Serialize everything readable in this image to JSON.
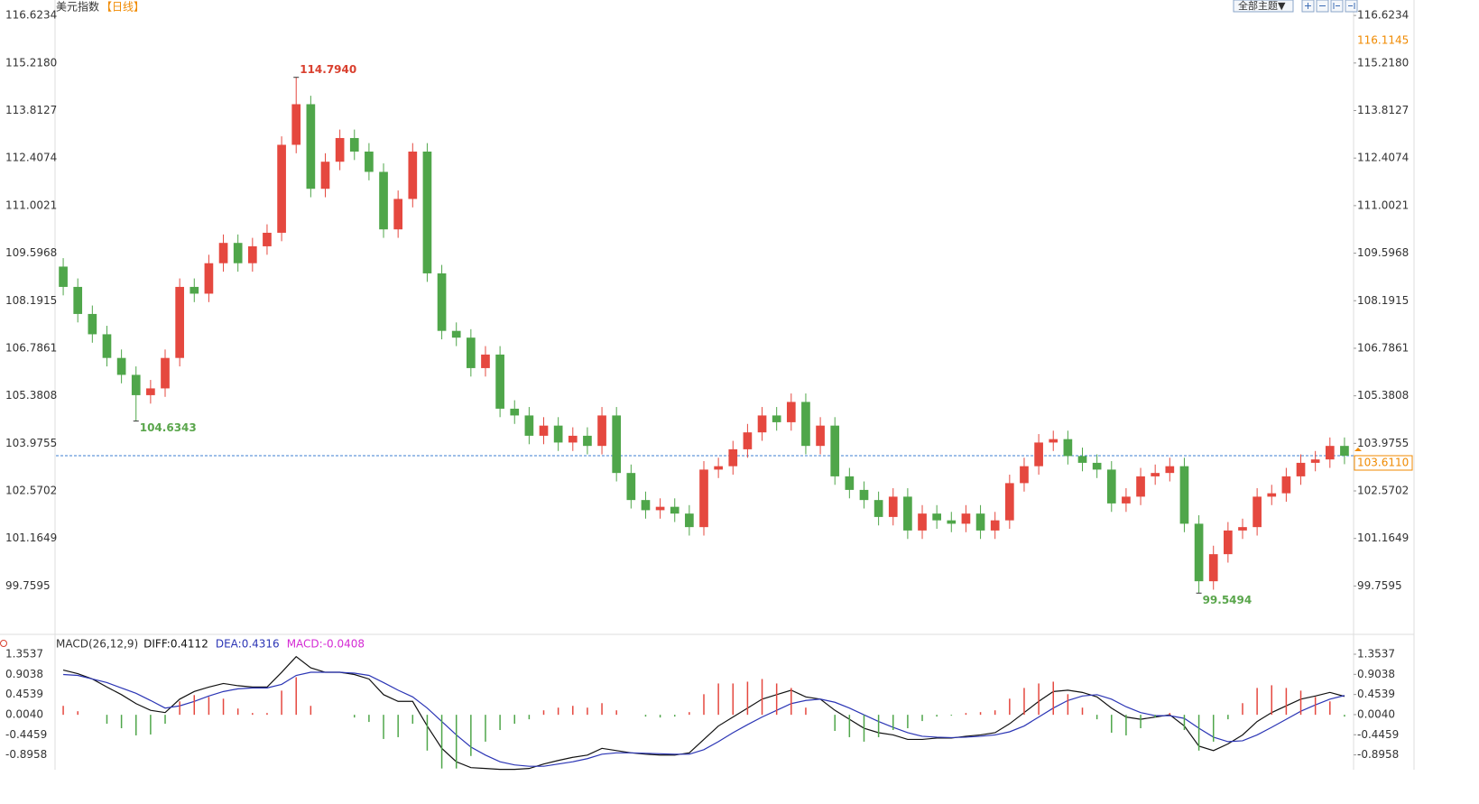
{
  "header": {
    "title": "美元指数",
    "period": "【日线】",
    "theme_button": "全部主题▼"
  },
  "chart_data": [
    {
      "type": "candlestick",
      "up_color": "#e5483f",
      "down_color": "#4fa64a",
      "open": [
        109.2,
        108.6,
        107.8,
        107.2,
        106.5,
        106.0,
        105.4,
        105.6,
        106.5,
        108.6,
        108.4,
        109.3,
        109.9,
        109.3,
        109.8,
        110.2,
        112.8,
        114.0,
        111.5,
        112.3,
        113.0,
        112.6,
        112.0,
        110.3,
        111.2,
        112.6,
        109.0,
        107.3,
        107.1,
        106.2,
        106.6,
        105.0,
        104.8,
        104.2,
        104.5,
        104.0,
        104.2,
        103.9,
        104.8,
        103.1,
        102.3,
        102.0,
        102.1,
        101.9,
        101.5,
        103.2,
        103.3,
        103.8,
        104.3,
        104.8,
        104.6,
        105.2,
        103.9,
        104.5,
        103.0,
        102.6,
        102.3,
        101.8,
        102.4,
        101.4,
        101.9,
        101.7,
        101.6,
        101.9,
        101.4,
        101.7,
        102.8,
        103.3,
        104.0,
        104.1,
        103.6,
        103.4,
        103.2,
        102.2,
        102.4,
        103.0,
        103.1,
        103.3,
        101.6,
        99.9,
        100.7,
        101.4,
        101.5,
        102.4,
        102.5,
        103.0,
        103.4,
        103.5,
        103.9
      ],
      "high": [
        109.45,
        108.85,
        108.05,
        107.45,
        106.75,
        106.25,
        105.85,
        106.75,
        108.85,
        108.85,
        109.55,
        110.15,
        110.15,
        110.05,
        110.45,
        113.05,
        114.794,
        114.25,
        112.55,
        113.25,
        113.25,
        112.85,
        112.25,
        111.45,
        112.85,
        112.85,
        109.25,
        107.55,
        107.35,
        106.85,
        106.85,
        105.25,
        105.05,
        104.75,
        104.75,
        104.45,
        104.45,
        105.05,
        105.05,
        103.35,
        102.55,
        102.35,
        102.35,
        102.15,
        103.45,
        103.55,
        104.05,
        104.55,
        105.05,
        105.05,
        105.45,
        105.45,
        104.75,
        104.75,
        103.25,
        102.85,
        102.55,
        102.65,
        102.65,
        102.15,
        102.15,
        101.95,
        102.15,
        102.15,
        101.95,
        103.05,
        103.55,
        104.25,
        104.35,
        104.35,
        103.85,
        103.65,
        103.45,
        102.65,
        103.25,
        103.35,
        103.55,
        103.55,
        101.85,
        100.95,
        101.65,
        101.75,
        102.65,
        102.75,
        103.25,
        103.65,
        103.75,
        104.15,
        104.15
      ],
      "low": [
        108.35,
        107.55,
        106.95,
        106.25,
        105.75,
        104.6343,
        105.15,
        105.35,
        106.25,
        108.15,
        108.15,
        109.05,
        109.05,
        109.05,
        109.55,
        109.95,
        112.55,
        111.25,
        111.25,
        112.05,
        112.35,
        111.75,
        110.05,
        110.05,
        110.95,
        108.75,
        107.05,
        106.85,
        105.95,
        105.95,
        104.75,
        104.55,
        103.95,
        103.95,
        103.75,
        103.75,
        103.65,
        103.65,
        102.85,
        102.05,
        101.75,
        101.75,
        101.65,
        101.25,
        101.25,
        102.95,
        103.05,
        103.55,
        104.05,
        104.35,
        104.35,
        103.65,
        103.65,
        102.75,
        102.35,
        102.05,
        101.55,
        101.55,
        101.15,
        101.15,
        101.45,
        101.35,
        101.35,
        101.15,
        101.15,
        101.45,
        102.55,
        103.05,
        103.75,
        103.35,
        103.15,
        102.95,
        101.95,
        101.95,
        102.15,
        102.75,
        102.85,
        101.35,
        99.5494,
        99.65,
        100.45,
        101.15,
        101.25,
        102.15,
        102.25,
        102.75,
        103.15,
        103.25,
        103.36
      ],
      "close": [
        108.6,
        107.8,
        107.2,
        106.5,
        106.0,
        105.4,
        105.6,
        106.5,
        108.6,
        108.4,
        109.3,
        109.9,
        109.3,
        109.8,
        110.2,
        112.8,
        114.0,
        111.5,
        112.3,
        113.0,
        112.6,
        112.0,
        110.3,
        111.2,
        112.6,
        109.0,
        107.3,
        107.1,
        106.2,
        106.6,
        105.0,
        104.8,
        104.2,
        104.5,
        104.0,
        104.2,
        103.9,
        104.8,
        103.1,
        102.3,
        102.0,
        102.1,
        101.9,
        101.5,
        103.2,
        103.3,
        103.8,
        104.3,
        104.8,
        104.6,
        105.2,
        103.9,
        104.5,
        103.0,
        102.6,
        102.3,
        101.8,
        102.4,
        101.4,
        101.9,
        101.7,
        101.6,
        101.9,
        101.4,
        101.7,
        102.8,
        103.3,
        104.0,
        104.1,
        103.6,
        103.4,
        103.2,
        102.2,
        102.4,
        103.0,
        103.1,
        103.3,
        101.6,
        99.9,
        100.7,
        101.4,
        101.5,
        102.4,
        102.5,
        103.0,
        103.4,
        103.5,
        103.9,
        103.611
      ],
      "ylim": [
        98.41,
        117.08
      ],
      "yticks": [
        116.6234,
        {
          "value": 115.218,
          "label": "115.2180"
        },
        113.8127,
        112.4074,
        111.0021,
        109.5968,
        108.1915,
        106.7861,
        105.3808,
        103.9755,
        102.5702,
        101.1649,
        99.7595
      ],
      "annotations": [
        {
          "label": "114.7940",
          "value": 114.794,
          "color": "#d9402f"
        },
        {
          "label": "104.6343",
          "value": 104.6343,
          "color": "#5aa64c"
        },
        {
          "label": "99.5494",
          "value": 99.5494,
          "color": "#5aa64c"
        }
      ],
      "last_price": {
        "value": 103.611,
        "label": "103.6110",
        "color": "#f08a00",
        "line_color": "#3d7fd1"
      },
      "marker": {
        "value": 116.1145,
        "label": "116.1145",
        "color": "#f08a00"
      }
    },
    {
      "type": "macd",
      "title": "MACD(26,12,9)",
      "series": [
        {
          "name": "DIFF:0.4112",
          "type": "line",
          "color": "#111111",
          "values": [
            1.0,
            0.92,
            0.8,
            0.62,
            0.45,
            0.25,
            0.1,
            0.05,
            0.35,
            0.52,
            0.62,
            0.7,
            0.65,
            0.62,
            0.62,
            0.95,
            1.3,
            1.05,
            0.95,
            0.95,
            0.9,
            0.8,
            0.45,
            0.3,
            0.3,
            -0.25,
            -0.75,
            -1.05,
            -1.18,
            -1.2,
            -1.22,
            -1.22,
            -1.2,
            -1.1,
            -1.02,
            -0.95,
            -0.9,
            -0.75,
            -0.8,
            -0.85,
            -0.88,
            -0.9,
            -0.9,
            -0.85,
            -0.55,
            -0.25,
            -0.05,
            0.15,
            0.35,
            0.45,
            0.55,
            0.4,
            0.35,
            0.1,
            -0.1,
            -0.3,
            -0.4,
            -0.45,
            -0.55,
            -0.55,
            -0.52,
            -0.52,
            -0.48,
            -0.45,
            -0.4,
            -0.2,
            0.05,
            0.3,
            0.52,
            0.55,
            0.5,
            0.4,
            0.15,
            -0.05,
            -0.1,
            -0.05,
            0.0,
            -0.25,
            -0.7,
            -0.8,
            -0.65,
            -0.45,
            -0.15,
            0.05,
            0.2,
            0.35,
            0.42,
            0.5,
            0.4112
          ]
        },
        {
          "name": "DEA:0.4316",
          "type": "line",
          "color": "#2b35b5",
          "values": [
            0.9,
            0.88,
            0.8,
            0.72,
            0.6,
            0.48,
            0.32,
            0.15,
            0.2,
            0.3,
            0.42,
            0.52,
            0.58,
            0.6,
            0.6,
            0.68,
            0.88,
            0.95,
            0.95,
            0.95,
            0.93,
            0.88,
            0.72,
            0.55,
            0.4,
            0.15,
            -0.15,
            -0.45,
            -0.72,
            -0.9,
            -1.05,
            -1.12,
            -1.15,
            -1.15,
            -1.1,
            -1.05,
            -0.98,
            -0.88,
            -0.85,
            -0.85,
            -0.86,
            -0.87,
            -0.88,
            -0.88,
            -0.78,
            -0.6,
            -0.4,
            -0.22,
            -0.05,
            0.1,
            0.25,
            0.32,
            0.35,
            0.28,
            0.15,
            0.0,
            -0.15,
            -0.28,
            -0.4,
            -0.48,
            -0.5,
            -0.51,
            -0.5,
            -0.48,
            -0.45,
            -0.38,
            -0.25,
            -0.05,
            0.15,
            0.32,
            0.42,
            0.45,
            0.35,
            0.18,
            0.05,
            -0.02,
            -0.02,
            -0.08,
            -0.3,
            -0.5,
            -0.6,
            -0.58,
            -0.45,
            -0.28,
            -0.1,
            0.08,
            0.22,
            0.35,
            0.4316
          ]
        },
        {
          "name": "MACD:-0.0408",
          "type": "bar",
          "color": "#d42ad4",
          "up_color": "#e5483f",
          "down_color": "#4fa64a",
          "values": [
            0.2,
            0.08,
            0.0,
            -0.2,
            -0.3,
            -0.46,
            -0.44,
            -0.2,
            0.3,
            0.44,
            0.4,
            0.36,
            0.14,
            0.04,
            0.04,
            0.54,
            0.84,
            0.2,
            0.0,
            0.0,
            -0.06,
            -0.16,
            -0.54,
            -0.5,
            -0.2,
            -0.8,
            -1.2,
            -1.2,
            -0.92,
            -0.6,
            -0.34,
            -0.2,
            -0.1,
            0.1,
            0.16,
            0.2,
            0.16,
            0.26,
            0.1,
            0.0,
            -0.04,
            -0.06,
            -0.04,
            0.06,
            0.46,
            0.7,
            0.7,
            0.74,
            0.8,
            0.7,
            0.6,
            0.16,
            0.0,
            -0.36,
            -0.5,
            -0.6,
            -0.5,
            -0.34,
            -0.3,
            -0.14,
            -0.04,
            -0.02,
            0.04,
            0.06,
            0.1,
            0.36,
            0.6,
            0.7,
            0.74,
            0.46,
            0.16,
            -0.1,
            -0.4,
            -0.46,
            -0.3,
            -0.06,
            0.04,
            -0.34,
            -0.8,
            -0.6,
            -0.1,
            0.26,
            0.6,
            0.66,
            0.6,
            0.54,
            0.4,
            0.3,
            -0.0408
          ]
        }
      ],
      "ylim": [
        -1.227,
        1.737
      ],
      "yticks": [
        1.3537,
        0.9038,
        0.4539,
        {
          "value": 0.004,
          "label": "0.0040"
        },
        -0.4459,
        -0.8958
      ]
    }
  ]
}
